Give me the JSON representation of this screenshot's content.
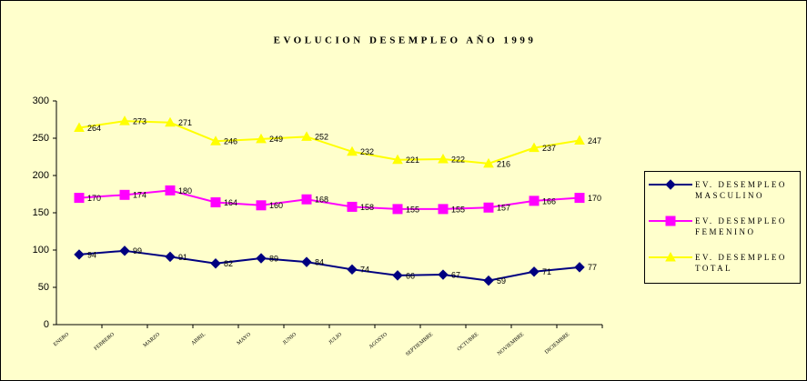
{
  "chart_data": {
    "type": "line",
    "title": "EVOLUCION DESEMPLEO AÑO 1999",
    "categories": [
      "ENERO",
      "FEBRERO",
      "MARZO",
      "ABRIL",
      "MAYO",
      "JUNIO",
      "JULIO",
      "AGOSTO",
      "SEPTIEMBRE",
      "OCTUBRE",
      "NOVIEMBRE",
      "DICIEMBRE"
    ],
    "series": [
      {
        "name": "EV. DESEMPLEO MASCULINO",
        "color": "#000080",
        "marker": "diamond",
        "values": [
          94,
          99,
          91,
          82,
          89,
          84,
          74,
          66,
          67,
          59,
          71,
          77
        ]
      },
      {
        "name": "EV. DESEMPLEO FEMENINO",
        "color": "#ff00ff",
        "marker": "square",
        "values": [
          170,
          174,
          180,
          164,
          160,
          168,
          158,
          155,
          155,
          157,
          166,
          170
        ]
      },
      {
        "name": "EV. DESEMPLEO TOTAL",
        "color": "#ffff00",
        "marker": "triangle",
        "values": [
          264,
          273,
          271,
          246,
          249,
          252,
          232,
          221,
          222,
          216,
          237,
          247
        ]
      }
    ],
    "ylim": [
      0,
      300
    ],
    "yticks": [
      0,
      50,
      100,
      150,
      200,
      250,
      300
    ],
    "grid": false,
    "legend": "right"
  }
}
